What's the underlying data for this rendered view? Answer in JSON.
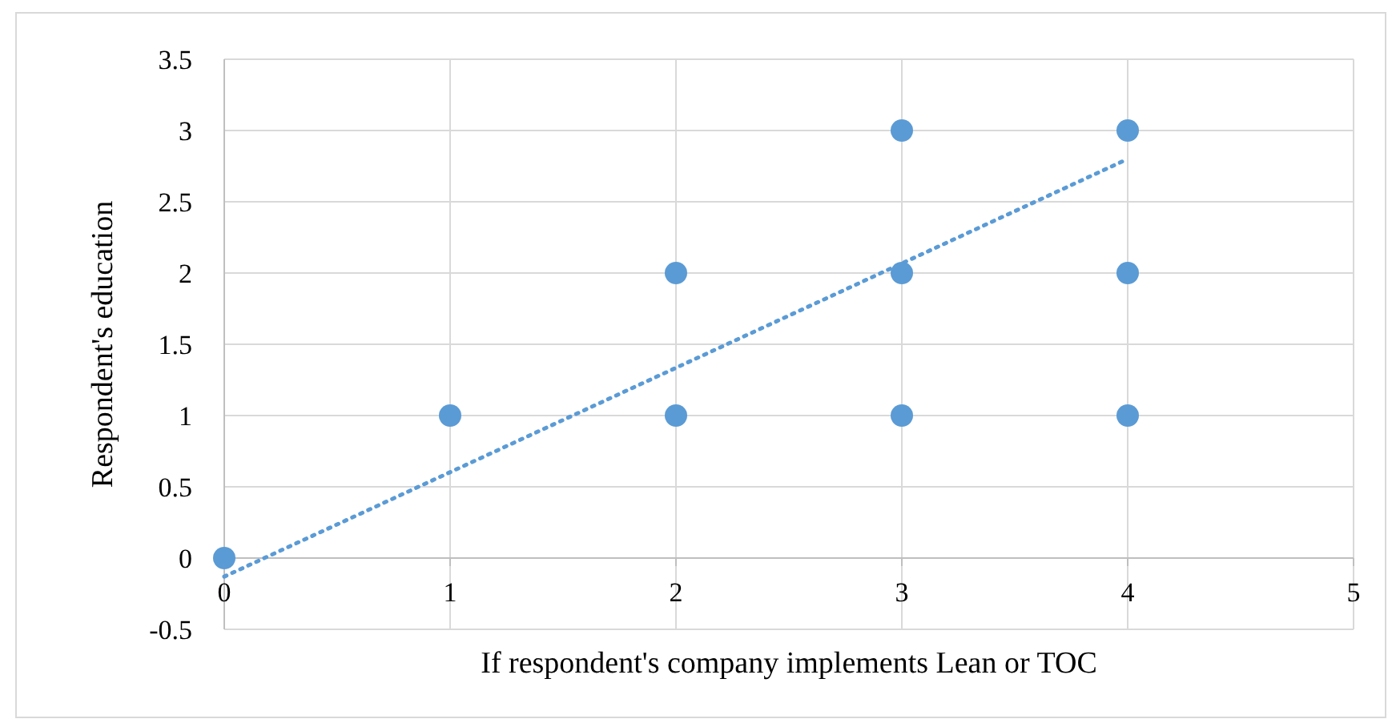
{
  "chart_data": {
    "type": "scatter",
    "xlabel": "If respondent's company implements Lean or TOC",
    "ylabel": "Respondent's education",
    "xlim": [
      0,
      5
    ],
    "xticks": [
      0,
      1,
      2,
      3,
      4,
      5
    ],
    "ylim": [
      -0.5,
      3.5
    ],
    "yticks": [
      -0.5,
      0,
      0.5,
      1,
      1.5,
      2,
      2.5,
      3,
      3.5
    ],
    "grid": true,
    "marker": "circle",
    "series": [
      {
        "color": "#5b9bd5",
        "x": [
          0,
          1,
          2,
          2,
          3,
          3,
          3,
          4,
          4,
          4
        ],
        "values": [
          0,
          1,
          1,
          2,
          1,
          2,
          3,
          1,
          2,
          3
        ]
      },
      {
        "type": "line",
        "color": "#5b9bd5",
        "line_style": "dotted",
        "marker": "none",
        "x": [
          0,
          4
        ],
        "values": [
          -0.13,
          2.8
        ]
      }
    ]
  }
}
